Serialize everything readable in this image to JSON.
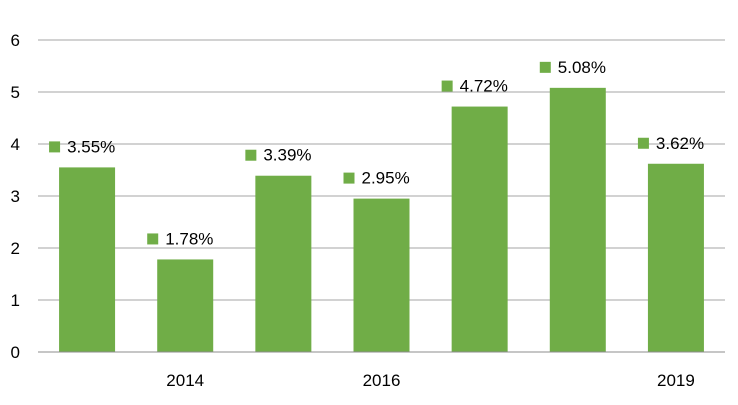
{
  "chart_data": {
    "type": "bar",
    "title": "",
    "xlabel": "",
    "ylabel": "",
    "categories": [
      "",
      "2014",
      "",
      "2016",
      "",
      "",
      "2019"
    ],
    "values": [
      3.55,
      1.78,
      3.39,
      2.95,
      4.72,
      5.08,
      3.62
    ],
    "data_labels": [
      "3.55%",
      "1.78%",
      "3.39%",
      "2.95%",
      "4.72%",
      "5.08%",
      "3.62%"
    ],
    "ylim": [
      0,
      6
    ],
    "yticks": [
      0,
      1,
      2,
      3,
      4,
      5,
      6
    ],
    "grid": true,
    "legend": "none",
    "colors": {
      "bar": "#70ad47",
      "marker": "#70ad47"
    }
  }
}
